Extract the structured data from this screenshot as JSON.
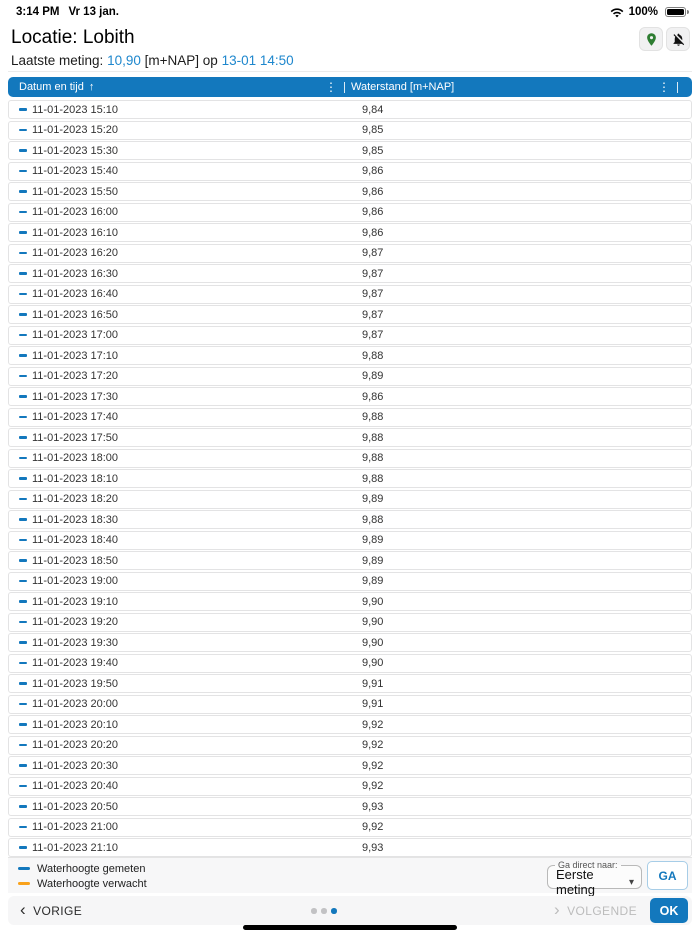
{
  "status_bar": {
    "time": "3:14 PM",
    "date": "Vr 13 jan.",
    "battery_percent": "100%"
  },
  "header": {
    "title": "Locatie: Lobith"
  },
  "last_measurement": {
    "prefix": "Laatste meting:",
    "value": "10,90",
    "unit": "[m+NAP]",
    "op": "op",
    "datetime": "13-01 14:50"
  },
  "icons": {
    "sort_asc": "↑",
    "kebab_menu": "⋮",
    "chevron_left": "‹",
    "chevron_right": "›",
    "dropdown_arrow": "▾"
  },
  "table": {
    "columns": [
      {
        "label": "Datum en tijd",
        "sorted": "asc"
      },
      {
        "label": "Waterstand [m+NAP]"
      }
    ],
    "rows": [
      {
        "datetime": "11-01-2023 15:10",
        "value": "9,84"
      },
      {
        "datetime": "11-01-2023 15:20",
        "value": "9,85"
      },
      {
        "datetime": "11-01-2023 15:30",
        "value": "9,85"
      },
      {
        "datetime": "11-01-2023 15:40",
        "value": "9,86"
      },
      {
        "datetime": "11-01-2023 15:50",
        "value": "9,86"
      },
      {
        "datetime": "11-01-2023 16:00",
        "value": "9,86"
      },
      {
        "datetime": "11-01-2023 16:10",
        "value": "9,86"
      },
      {
        "datetime": "11-01-2023 16:20",
        "value": "9,87"
      },
      {
        "datetime": "11-01-2023 16:30",
        "value": "9,87"
      },
      {
        "datetime": "11-01-2023 16:40",
        "value": "9,87"
      },
      {
        "datetime": "11-01-2023 16:50",
        "value": "9,87"
      },
      {
        "datetime": "11-01-2023 17:00",
        "value": "9,87"
      },
      {
        "datetime": "11-01-2023 17:10",
        "value": "9,88"
      },
      {
        "datetime": "11-01-2023 17:20",
        "value": "9,89"
      },
      {
        "datetime": "11-01-2023 17:30",
        "value": "9,86"
      },
      {
        "datetime": "11-01-2023 17:40",
        "value": "9,88"
      },
      {
        "datetime": "11-01-2023 17:50",
        "value": "9,88"
      },
      {
        "datetime": "11-01-2023 18:00",
        "value": "9,88"
      },
      {
        "datetime": "11-01-2023 18:10",
        "value": "9,88"
      },
      {
        "datetime": "11-01-2023 18:20",
        "value": "9,89"
      },
      {
        "datetime": "11-01-2023 18:30",
        "value": "9,88"
      },
      {
        "datetime": "11-01-2023 18:40",
        "value": "9,89"
      },
      {
        "datetime": "11-01-2023 18:50",
        "value": "9,89"
      },
      {
        "datetime": "11-01-2023 19:00",
        "value": "9,89"
      },
      {
        "datetime": "11-01-2023 19:10",
        "value": "9,90"
      },
      {
        "datetime": "11-01-2023 19:20",
        "value": "9,90"
      },
      {
        "datetime": "11-01-2023 19:30",
        "value": "9,90"
      },
      {
        "datetime": "11-01-2023 19:40",
        "value": "9,90"
      },
      {
        "datetime": "11-01-2023 19:50",
        "value": "9,91"
      },
      {
        "datetime": "11-01-2023 20:00",
        "value": "9,91"
      },
      {
        "datetime": "11-01-2023 20:10",
        "value": "9,92"
      },
      {
        "datetime": "11-01-2023 20:20",
        "value": "9,92"
      },
      {
        "datetime": "11-01-2023 20:30",
        "value": "9,92"
      },
      {
        "datetime": "11-01-2023 20:40",
        "value": "9,92"
      },
      {
        "datetime": "11-01-2023 20:50",
        "value": "9,93"
      },
      {
        "datetime": "11-01-2023 21:00",
        "value": "9,92"
      },
      {
        "datetime": "11-01-2023 21:10",
        "value": "9,93"
      }
    ]
  },
  "legend": {
    "items": [
      {
        "label": "Waterhoogte gemeten",
        "color": "#1378bd"
      },
      {
        "label": "Waterhoogte verwacht",
        "color": "#f9a21b"
      }
    ]
  },
  "goto": {
    "label": "Ga direct naar:",
    "selected": "Eerste meting",
    "button": "GA"
  },
  "footer": {
    "previous": "VORIGE",
    "next": "VOLGENDE",
    "ok": "OK",
    "dots": [
      {
        "active": false
      },
      {
        "active": false
      },
      {
        "active": true
      }
    ]
  },
  "colors": {
    "accent_blue": "#1378bd",
    "link_blue": "#1e87cd",
    "forecast_orange": "#f9a21b",
    "pin_green": "#2e7d32"
  }
}
